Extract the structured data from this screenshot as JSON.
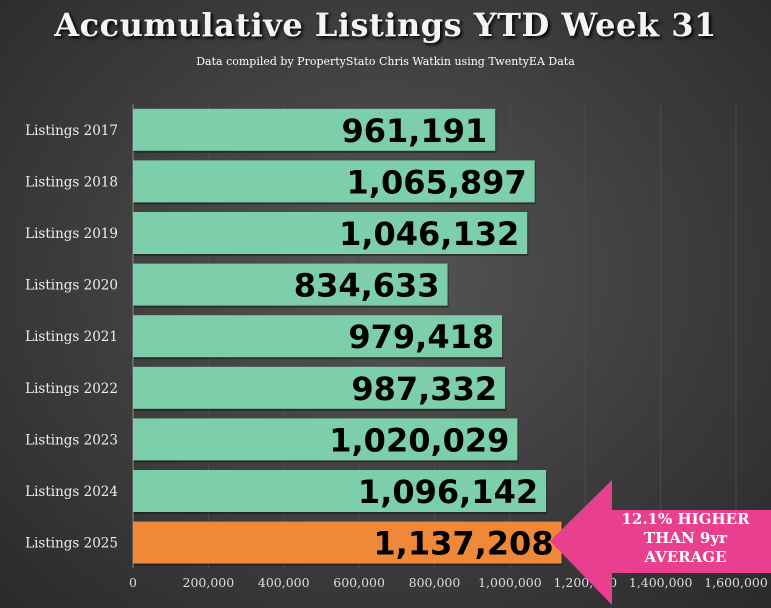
{
  "chart_data": {
    "type": "bar",
    "orientation": "horizontal",
    "title": "Accumulative Listings YTD Week 31",
    "subtitle": "Data compiled by PropertyStato Chris Watkin using TwentyEA Data",
    "categories": [
      "Listings 2017",
      "Listings 2018",
      "Listings 2019",
      "Listings 2020",
      "Listings 2021",
      "Listings 2022",
      "Listings 2023",
      "Listings 2024",
      "Listings 2025"
    ],
    "values": [
      961191,
      1065897,
      1046132,
      834633,
      979418,
      987332,
      1020029,
      1096142,
      1137208
    ],
    "value_labels": [
      "961,191",
      "1,065,897",
      "1,046,132",
      "834,633",
      "979,418",
      "987,332",
      "1,020,029",
      "1,096,142",
      "1,137,208"
    ],
    "colors": [
      "#7ccfaa",
      "#7ccfaa",
      "#7ccfaa",
      "#7ccfaa",
      "#7ccfaa",
      "#7ccfaa",
      "#7ccfaa",
      "#7ccfaa",
      "#f0883a"
    ],
    "xlim": [
      0,
      1600000
    ],
    "x_ticks": [
      0,
      200000,
      400000,
      600000,
      800000,
      1000000,
      1200000,
      1400000,
      1600000
    ],
    "x_tick_labels": [
      "0",
      "200,000",
      "400,000",
      "600,000",
      "800,000",
      "1,000,000",
      "1,200,000",
      "1,400,000",
      "1,600,000"
    ],
    "grid": true,
    "annotation": {
      "lines": [
        "12.1% HIGHER",
        "THAN 9yr",
        "AVERAGE"
      ],
      "color": "#e8408f"
    }
  }
}
